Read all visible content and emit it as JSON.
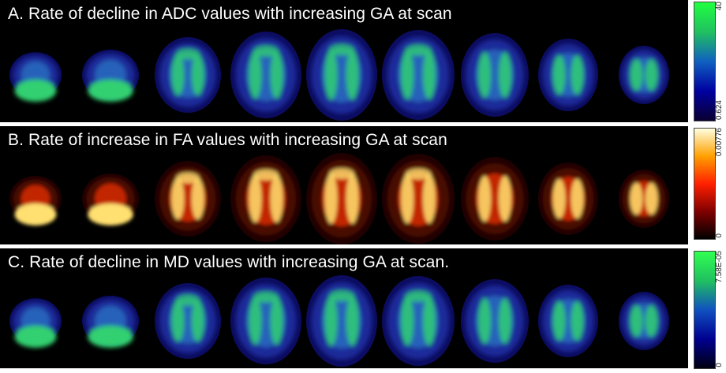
{
  "panels": [
    {
      "title": "A. Rate of decline in ADC values with increasing GA at scan",
      "colormap": "blue-green",
      "colorbar": {
        "max_label": "40",
        "min_label": "0.624",
        "colors": [
          "#0a0030",
          "#0000a0",
          "#1060c0",
          "#20c060",
          "#20ff40"
        ]
      }
    },
    {
      "title": "B. Rate of increase in FA values with increasing GA at scan",
      "colormap": "hot",
      "colorbar": {
        "max_label": "0.00776",
        "min_label": "0",
        "colors": [
          "#000000",
          "#800000",
          "#ff2000",
          "#ffa000",
          "#ffffe0"
        ]
      }
    },
    {
      "title": "C. Rate of decline in MD values with increasing GA at scan.",
      "colormap": "blue-green",
      "colorbar": {
        "max_label": "7.58E-05",
        "min_label": "0",
        "colors": [
          "#000010",
          "#000090",
          "#1050c0",
          "#20c060",
          "#30ff50"
        ]
      }
    }
  ]
}
